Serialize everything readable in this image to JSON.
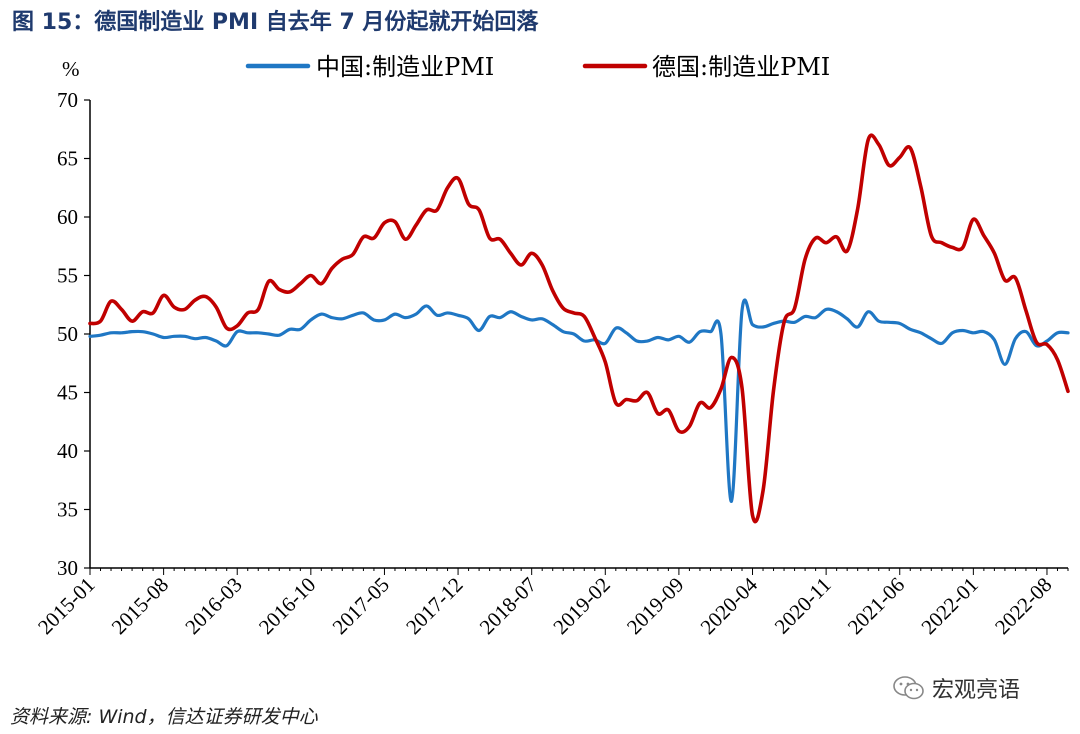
{
  "figure": {
    "title": "图 15：德国制造业 PMI 自去年 7 月份起就开始回落",
    "source": "资料来源: Wind，信达证券研发中心",
    "watermark": "宏观亮语",
    "watermark_icon": "wechat-icon"
  },
  "chart_data": {
    "type": "line",
    "title": "",
    "xlabel": "",
    "ylabel": "%",
    "ylim": [
      30,
      70
    ],
    "yticks": [
      30,
      35,
      40,
      45,
      50,
      55,
      60,
      65,
      70
    ],
    "xticks": [
      "2015-01",
      "2015-08",
      "2016-03",
      "2016-10",
      "2017-05",
      "2017-12",
      "2018-07",
      "2019-02",
      "2019-09",
      "2020-04",
      "2020-11",
      "2021-06",
      "2022-01",
      "2022-08"
    ],
    "legend_position": "top",
    "grid": false,
    "x": [
      "2015-01",
      "2015-02",
      "2015-03",
      "2015-04",
      "2015-05",
      "2015-06",
      "2015-07",
      "2015-08",
      "2015-09",
      "2015-10",
      "2015-11",
      "2015-12",
      "2016-01",
      "2016-02",
      "2016-03",
      "2016-04",
      "2016-05",
      "2016-06",
      "2016-07",
      "2016-08",
      "2016-09",
      "2016-10",
      "2016-11",
      "2016-12",
      "2017-01",
      "2017-02",
      "2017-03",
      "2017-04",
      "2017-05",
      "2017-06",
      "2017-07",
      "2017-08",
      "2017-09",
      "2017-10",
      "2017-11",
      "2017-12",
      "2018-01",
      "2018-02",
      "2018-03",
      "2018-04",
      "2018-05",
      "2018-06",
      "2018-07",
      "2018-08",
      "2018-09",
      "2018-10",
      "2018-11",
      "2018-12",
      "2019-01",
      "2019-02",
      "2019-03",
      "2019-04",
      "2019-05",
      "2019-06",
      "2019-07",
      "2019-08",
      "2019-09",
      "2019-10",
      "2019-11",
      "2019-12",
      "2020-01",
      "2020-02",
      "2020-03",
      "2020-04",
      "2020-05",
      "2020-06",
      "2020-07",
      "2020-08",
      "2020-09",
      "2020-10",
      "2020-11",
      "2020-12",
      "2021-01",
      "2021-02",
      "2021-03",
      "2021-04",
      "2021-05",
      "2021-06",
      "2021-07",
      "2021-08",
      "2021-09",
      "2021-10",
      "2021-11",
      "2021-12",
      "2022-01",
      "2022-02",
      "2022-03",
      "2022-04",
      "2022-05",
      "2022-06",
      "2022-07",
      "2022-08",
      "2022-09",
      "2022-10"
    ],
    "series": [
      {
        "name": "中国:制造业PMI",
        "color": "#1f77c4",
        "values": [
          49.8,
          49.9,
          50.1,
          50.1,
          50.2,
          50.2,
          50.0,
          49.7,
          49.8,
          49.8,
          49.6,
          49.7,
          49.4,
          49.0,
          50.2,
          50.1,
          50.1,
          50.0,
          49.9,
          50.4,
          50.4,
          51.2,
          51.7,
          51.4,
          51.3,
          51.6,
          51.8,
          51.2,
          51.2,
          51.7,
          51.4,
          51.7,
          52.4,
          51.6,
          51.8,
          51.6,
          51.3,
          50.3,
          51.5,
          51.4,
          51.9,
          51.5,
          51.2,
          51.3,
          50.8,
          50.2,
          50.0,
          49.4,
          49.5,
          49.2,
          50.5,
          50.1,
          49.4,
          49.4,
          49.7,
          49.5,
          49.8,
          49.3,
          50.2,
          50.2,
          50.0,
          35.7,
          52.0,
          50.8,
          50.6,
          50.9,
          51.1,
          51.0,
          51.5,
          51.4,
          52.1,
          51.9,
          51.3,
          50.6,
          51.9,
          51.1,
          51.0,
          50.9,
          50.4,
          50.1,
          49.6,
          49.2,
          50.1,
          50.3,
          50.1,
          50.2,
          49.5,
          47.4,
          49.6,
          50.2,
          49.0,
          49.4,
          50.1,
          50.1
        ]
      },
      {
        "name": "德国:制造业PMI",
        "color": "#c00000",
        "values": [
          50.9,
          51.1,
          52.8,
          52.1,
          51.1,
          51.9,
          51.8,
          53.3,
          52.3,
          52.1,
          52.9,
          53.2,
          52.3,
          50.5,
          50.7,
          51.8,
          52.1,
          54.5,
          53.8,
          53.6,
          54.3,
          55.0,
          54.3,
          55.6,
          56.4,
          56.8,
          58.3,
          58.2,
          59.5,
          59.6,
          58.1,
          59.3,
          60.6,
          60.6,
          62.5,
          63.3,
          61.1,
          60.6,
          58.2,
          58.1,
          56.9,
          55.9,
          56.9,
          55.9,
          53.7,
          52.2,
          51.8,
          51.5,
          49.7,
          47.6,
          44.1,
          44.4,
          44.3,
          45.0,
          43.2,
          43.5,
          41.7,
          42.1,
          44.1,
          43.7,
          45.3,
          48.0,
          45.4,
          34.5,
          36.6,
          45.2,
          51.0,
          52.2,
          56.4,
          58.2,
          57.8,
          58.3,
          57.1,
          60.7,
          66.6,
          66.2,
          64.4,
          65.1,
          65.9,
          62.6,
          58.4,
          57.8,
          57.4,
          57.4,
          59.8,
          58.4,
          56.9,
          54.6,
          54.8,
          52.0,
          49.3,
          49.1,
          47.8,
          45.1
        ]
      }
    ]
  }
}
